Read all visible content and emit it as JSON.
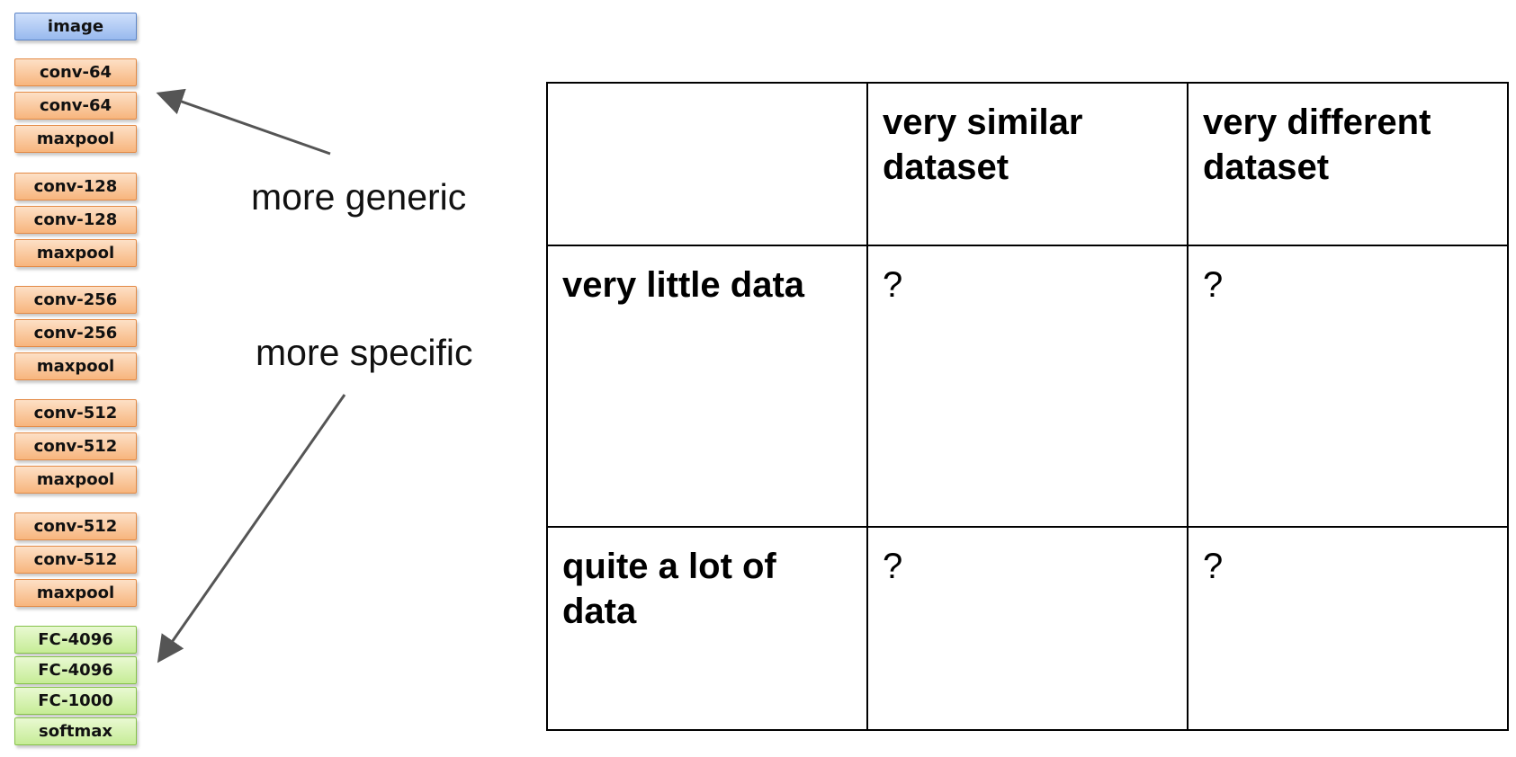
{
  "layers": [
    {
      "label": "image",
      "kind": "image"
    },
    {
      "label": "conv-64",
      "kind": "conv"
    },
    {
      "label": "conv-64",
      "kind": "conv"
    },
    {
      "label": "maxpool",
      "kind": "pool"
    },
    {
      "label": "conv-128",
      "kind": "conv"
    },
    {
      "label": "conv-128",
      "kind": "conv"
    },
    {
      "label": "maxpool",
      "kind": "pool"
    },
    {
      "label": "conv-256",
      "kind": "conv"
    },
    {
      "label": "conv-256",
      "kind": "conv"
    },
    {
      "label": "maxpool",
      "kind": "pool"
    },
    {
      "label": "conv-512",
      "kind": "conv"
    },
    {
      "label": "conv-512",
      "kind": "conv"
    },
    {
      "label": "maxpool",
      "kind": "pool"
    },
    {
      "label": "conv-512",
      "kind": "conv"
    },
    {
      "label": "conv-512",
      "kind": "conv"
    },
    {
      "label": "maxpool",
      "kind": "pool"
    },
    {
      "label": "FC-4096",
      "kind": "fc"
    },
    {
      "label": "FC-4096",
      "kind": "fc"
    },
    {
      "label": "FC-1000",
      "kind": "fc"
    },
    {
      "label": "softmax",
      "kind": "fc"
    }
  ],
  "annotations": {
    "generic": "more generic",
    "specific": "more specific"
  },
  "table": {
    "header": [
      "",
      "very similar dataset",
      "very different dataset"
    ],
    "rows": [
      {
        "label": "very little data",
        "cells": [
          "?",
          "?"
        ]
      },
      {
        "label": "quite a lot of data",
        "cells": [
          "?",
          "?"
        ]
      }
    ]
  },
  "colors": {
    "arrow": "#555555",
    "image_fill": "#98b9ee",
    "conv_fill": "#f7b57d",
    "fc_fill": "#c6ec96"
  }
}
